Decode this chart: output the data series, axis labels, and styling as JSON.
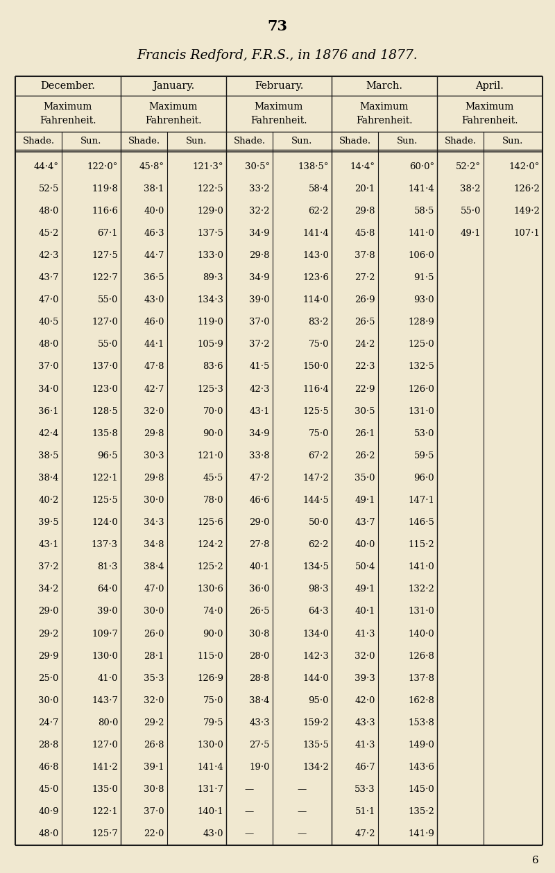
{
  "page_number": "73",
  "title": "Francis Redford, F.R.S., in 1876 and 1877.",
  "background_color": "#f0e8d0",
  "months": [
    "December.",
    "January.",
    "February.",
    "March.",
    "April."
  ],
  "table_data": [
    [
      "44·4°",
      "122·0°",
      "45·8°",
      "121·3°",
      "30·5°",
      "138·5°",
      "14·4°",
      "60·0°",
      "52·2°",
      "142·0°"
    ],
    [
      "52·5",
      "119·8",
      "38·1",
      "122·5",
      "33·2",
      "58·4",
      "20·1",
      "141·4",
      "38·2",
      "126·2"
    ],
    [
      "48·0",
      "116·6",
      "40·0",
      "129·0",
      "32·2",
      "62·2",
      "29·8",
      "58·5",
      "55·0",
      "149·2"
    ],
    [
      "45·2",
      "67·1",
      "46·3",
      "137·5",
      "34·9",
      "141·4",
      "45·8",
      "141·0",
      "49·1",
      "107·1"
    ],
    [
      "42·3",
      "127·5",
      "44·7",
      "133·0",
      "29·8",
      "143·0",
      "37·8",
      "106·0",
      "",
      ""
    ],
    [
      "43·7",
      "122·7",
      "36·5",
      "89·3",
      "34·9",
      "123·6",
      "27·2",
      "91·5",
      "",
      ""
    ],
    [
      "47·0",
      "55·0",
      "43·0",
      "134·3",
      "39·0",
      "114·0",
      "26·9",
      "93·0",
      "",
      ""
    ],
    [
      "40·5",
      "127·0",
      "46·0",
      "119·0",
      "37·0",
      "83·2",
      "26·5",
      "128·9",
      "",
      ""
    ],
    [
      "48·0",
      "55·0",
      "44·1",
      "105·9",
      "37·2",
      "75·0",
      "24·2",
      "125·0",
      "",
      ""
    ],
    [
      "37·0",
      "137·0",
      "47·8",
      "83·6",
      "41·5",
      "150·0",
      "22·3",
      "132·5",
      "",
      ""
    ],
    [
      "34·0",
      "123·0",
      "42·7",
      "125·3",
      "42·3",
      "116·4",
      "22·9",
      "126·0",
      "",
      ""
    ],
    [
      "36·1",
      "128·5",
      "32·0",
      "70·0",
      "43·1",
      "125·5",
      "30·5",
      "131·0",
      "",
      ""
    ],
    [
      "42·4",
      "135·8",
      "29·8",
      "90·0",
      "34·9",
      "75·0",
      "26·1",
      "53·0",
      "",
      ""
    ],
    [
      "38·5",
      "96·5",
      "30·3",
      "121·0",
      "33·8",
      "67·2",
      "26·2",
      "59·5",
      "",
      ""
    ],
    [
      "38·4",
      "122·1",
      "29·8",
      "45·5",
      "47·2",
      "147·2",
      "35·0",
      "96·0",
      "",
      ""
    ],
    [
      "40·2",
      "125·5",
      "30·0",
      "78·0",
      "46·6",
      "144·5",
      "49·1",
      "147·1",
      "",
      ""
    ],
    [
      "39·5",
      "124·0",
      "34·3",
      "125·6",
      "29·0",
      "50·0",
      "43·7",
      "146·5",
      "",
      ""
    ],
    [
      "43·1",
      "137·3",
      "34·8",
      "124·2",
      "27·8",
      "62·2",
      "40·0",
      "115·2",
      "",
      ""
    ],
    [
      "37·2",
      "81·3",
      "38·4",
      "125·2",
      "40·1",
      "134·5",
      "50·4",
      "141·0",
      "",
      ""
    ],
    [
      "34·2",
      "64·0",
      "47·0",
      "130·6",
      "36·0",
      "98·3",
      "49·1",
      "132·2",
      "",
      ""
    ],
    [
      "29·0",
      "39·0",
      "30·0",
      "74·0",
      "26·5",
      "64·3",
      "40·1",
      "131·0",
      "",
      ""
    ],
    [
      "29·2",
      "109·7",
      "26·0",
      "90·0",
      "30·8",
      "134·0",
      "41·3",
      "140·0",
      "",
      ""
    ],
    [
      "29·9",
      "130·0",
      "28·1",
      "115·0",
      "28·0",
      "142·3",
      "32·0",
      "126·8",
      "",
      ""
    ],
    [
      "25·0",
      "41·0",
      "35·3",
      "126·9",
      "28·8",
      "144·0",
      "39·3",
      "137·8",
      "",
      ""
    ],
    [
      "30·0",
      "143·7",
      "32·0",
      "75·0",
      "38·4",
      "95·0",
      "42·0",
      "162·8",
      "",
      ""
    ],
    [
      "24·7",
      "80·0",
      "29·2",
      "79·5",
      "43·3",
      "159·2",
      "43·3",
      "153·8",
      "",
      ""
    ],
    [
      "28·8",
      "127·0",
      "26·8",
      "130·0",
      "27·5",
      "135·5",
      "41·3",
      "149·0",
      "",
      ""
    ],
    [
      "46·8",
      "141·2",
      "39·1",
      "141·4",
      "19·0",
      "134·2",
      "46·7",
      "143·6",
      "",
      ""
    ],
    [
      "45·0",
      "135·0",
      "30·8",
      "131·7",
      "—",
      "—",
      "53·3",
      "145·0",
      "",
      ""
    ],
    [
      "40·9",
      "122·1",
      "37·0",
      "140·1",
      "—",
      "—",
      "51·1",
      "135·2",
      "",
      ""
    ],
    [
      "48·0",
      "125·7",
      "22·0",
      "43·0",
      "—",
      "—",
      "47·2",
      "141·9",
      "",
      ""
    ]
  ],
  "footer_number": "6"
}
